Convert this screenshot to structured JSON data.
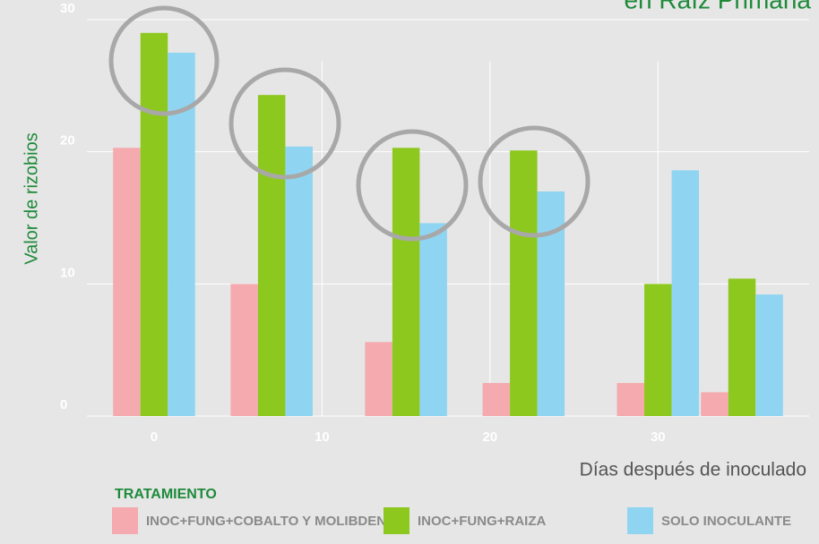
{
  "chart_data": {
    "type": "bar",
    "title": "en Raíz Primaria",
    "y_label": "Valor de rizobios",
    "x_label": "Días después de inoculado",
    "legend_title": "TRATAMIENTO",
    "x": [
      0,
      7,
      15,
      22,
      30,
      35
    ],
    "series": [
      {
        "name": "INOC+FUNG+COBALTO Y MOLIBDENO",
        "color": "#f4aaae",
        "values": [
          20.3,
          10,
          5.6,
          2.5,
          2.5,
          1.8
        ]
      },
      {
        "name": "INOC+FUNG+RAIZA",
        "color": "#8dc81e",
        "values": [
          29,
          24.3,
          20.3,
          20.1,
          10,
          10.4
        ]
      },
      {
        "name": "SOLO INOCULANTE",
        "color": "#8fd5f2",
        "values": [
          27.5,
          20.4,
          14.6,
          17,
          18.6,
          9.2
        ]
      }
    ],
    "xlim": [
      -4,
      39
    ],
    "xticks": [
      0,
      10,
      20,
      30
    ],
    "ylim": [
      0,
      30
    ],
    "yticks": [
      0,
      10,
      20,
      30
    ],
    "grid": true
  }
}
